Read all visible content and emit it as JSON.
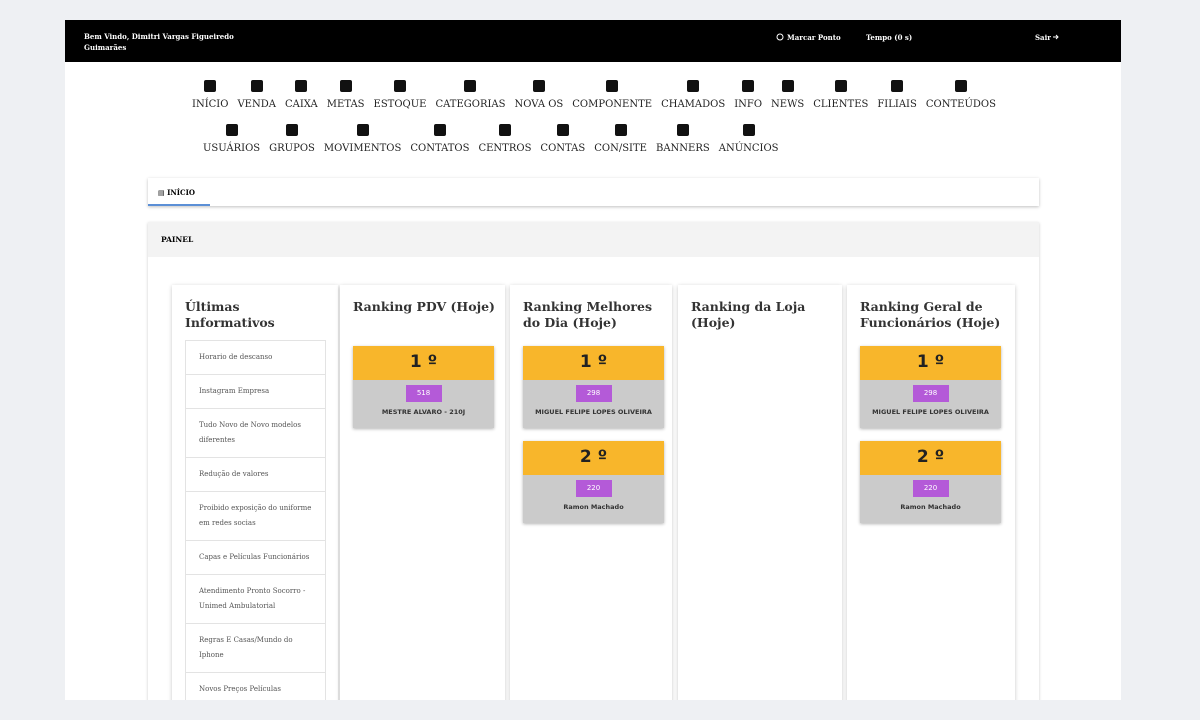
{
  "header": {
    "welcome": "Bem Vindo, Dimitri Vargas Figueiredo",
    "location": "Guimarães",
    "clock_in": "Marcar Ponto",
    "timer": "Tempo (0 s)",
    "logout": "Sair"
  },
  "nav": {
    "row1": [
      "INÍCIO",
      "VENDA",
      "CAIXA",
      "METAS",
      "ESTOQUE",
      "CATEGORIAS",
      "NOVA OS",
      "COMPONENTE",
      "CHAMADOS",
      "INFO",
      "NEWS",
      "CLIENTES",
      "FILIAIS",
      "CONTEÚDOS"
    ],
    "row2": [
      "USUÁRIOS",
      "GRUPOS",
      "MOVIMENTOS",
      "CONTATOS",
      "CENTROS",
      "CONTAS",
      "CON/SITE",
      "BANNERS",
      "ANÚNCIOS"
    ]
  },
  "breadcrumb": "INÍCIO",
  "panel": {
    "title": "PAINEL",
    "news": {
      "title": "Últimas Informativos",
      "items": [
        "Horario de descanso",
        "Instagram Empresa",
        "Tudo Novo de Novo modelos diferentes",
        "Redução de valores",
        "Proibido exposição do uniforme em redes socias",
        "Capas e Películas Funcionários",
        "Atendimento Pronto Socorro - Unimed Ambulatorial",
        "Regras E Casas/Mundo do Iphone",
        "Novos Preços Películas"
      ]
    },
    "rankings": [
      {
        "title": "Ranking PDV (Hoje)",
        "entries": [
          {
            "position": "1 º",
            "score": 518,
            "name": "MESTRE ALVARO - 210J"
          }
        ]
      },
      {
        "title": "Ranking Melhores do Dia (Hoje)",
        "entries": [
          {
            "position": "1 º",
            "score": 298,
            "name": "MIGUEL FELIPE LOPES OLIVEIRA"
          },
          {
            "position": "2 º",
            "score": 220,
            "name": "Ramon Machado"
          }
        ]
      },
      {
        "title": "Ranking da Loja (Hoje)",
        "entries": []
      },
      {
        "title": "Ranking Geral de Funcionários (Hoje)",
        "entries": [
          {
            "position": "1 º",
            "score": 298,
            "name": "MIGUEL FELIPE LOPES OLIVEIRA"
          },
          {
            "position": "2 º",
            "score": 220,
            "name": "Ramon Machado"
          }
        ]
      }
    ]
  }
}
